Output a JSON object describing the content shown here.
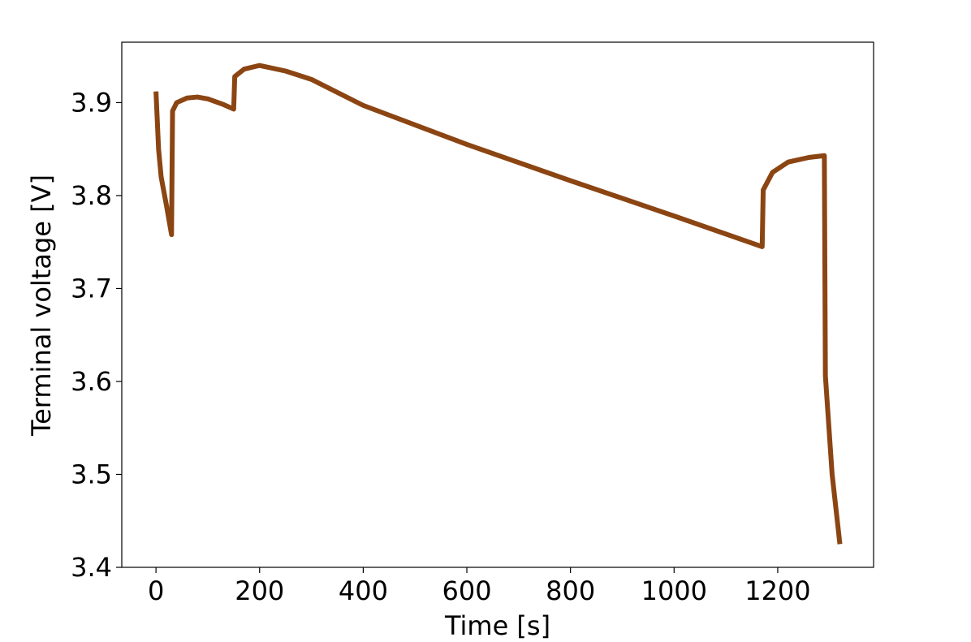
{
  "chart_data": {
    "type": "line",
    "xlabel": "Time [s]",
    "ylabel": "Terminal voltage [V]",
    "x": [
      0,
      5,
      10,
      20,
      30,
      32,
      40,
      60,
      80,
      100,
      130,
      150,
      152,
      170,
      200,
      250,
      300,
      400,
      500,
      600,
      800,
      1000,
      1170,
      1172,
      1190,
      1220,
      1260,
      1290,
      1292,
      1305,
      1320
    ],
    "series": [
      {
        "name": "Terminal voltage",
        "color": "#8b4513",
        "values": [
          3.912,
          3.85,
          3.82,
          3.79,
          3.758,
          3.891,
          3.9,
          3.905,
          3.906,
          3.904,
          3.898,
          3.893,
          3.928,
          3.936,
          3.94,
          3.934,
          3.925,
          3.897,
          3.876,
          3.855,
          3.816,
          3.778,
          3.745,
          3.806,
          3.825,
          3.836,
          3.841,
          3.843,
          3.606,
          3.5,
          3.425
        ]
      }
    ],
    "xlim": [
      -66,
      1385
    ],
    "ylim": [
      3.4,
      3.965
    ],
    "xticks": [
      0,
      200,
      400,
      600,
      800,
      1000,
      1200
    ],
    "yticks": [
      3.4,
      3.5,
      3.6,
      3.7,
      3.8,
      3.9
    ],
    "grid": false
  }
}
